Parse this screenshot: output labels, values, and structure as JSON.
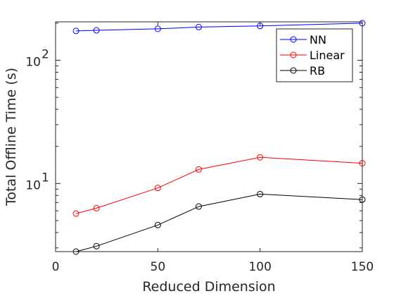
{
  "chart_data": {
    "type": "line",
    "xlabel": "Reduced Dimension",
    "ylabel": "Total Offline Time (s)",
    "xlim": [
      0,
      150
    ],
    "ylim": [
      2.8,
      205
    ],
    "y_scale": "log",
    "grid": false,
    "legend_position": "top-right",
    "x_ticks": [
      {
        "value": 0,
        "label": "0"
      },
      {
        "value": 50,
        "label": "50"
      },
      {
        "value": 100,
        "label": "100"
      },
      {
        "value": 150,
        "label": "150"
      }
    ],
    "y_ticks": [
      {
        "value": 10,
        "base": "10",
        "exp": "1"
      },
      {
        "value": 100,
        "base": "10",
        "exp": "2"
      }
    ],
    "x": [
      10,
      20,
      50,
      70,
      100,
      150
    ],
    "series": [
      {
        "name": "NN",
        "color": "#0000ff",
        "marker": "circle",
        "values": [
          173,
          175,
          180,
          186,
          190,
          200
        ]
      },
      {
        "name": "Linear",
        "color": "#ff0000",
        "marker": "circle",
        "values": [
          5.7,
          6.3,
          9.2,
          13,
          16.3,
          14.6
        ]
      },
      {
        "name": "RB",
        "color": "#000000",
        "marker": "circle",
        "values": [
          2.8,
          3.1,
          4.6,
          6.5,
          8.2,
          7.4
        ]
      }
    ]
  }
}
